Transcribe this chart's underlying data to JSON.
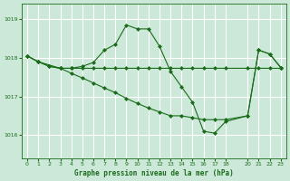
{
  "background_color": "#cce8d8",
  "grid_color": "#ffffff",
  "line_color": "#1a6b1a",
  "marker_color": "#1a6b1a",
  "title": "Graphe pression niveau de la mer (hPa)",
  "ylim": [
    1015.4,
    1019.4
  ],
  "yticks": [
    1016,
    1017,
    1018,
    1019
  ],
  "xlim": [
    -0.5,
    23.5
  ],
  "xticks": [
    0,
    1,
    2,
    3,
    4,
    5,
    6,
    7,
    8,
    9,
    10,
    11,
    12,
    13,
    14,
    15,
    16,
    17,
    18,
    20,
    21,
    22,
    23
  ],
  "series": [
    {
      "x": [
        0,
        1,
        2,
        3,
        4,
        5,
        6,
        7,
        8,
        9,
        10,
        11,
        12,
        13,
        14,
        15,
        16,
        17,
        18,
        20,
        21,
        22,
        23
      ],
      "y": [
        1018.05,
        1017.9,
        1017.78,
        1017.73,
        1017.73,
        1017.73,
        1017.73,
        1017.73,
        1017.73,
        1017.73,
        1017.73,
        1017.73,
        1017.73,
        1017.73,
        1017.73,
        1017.73,
        1017.73,
        1017.73,
        1017.73,
        1017.73,
        1017.73,
        1017.73,
        1017.73
      ]
    },
    {
      "x": [
        0,
        1,
        2,
        3,
        4,
        5,
        6,
        7,
        8,
        9,
        10,
        11,
        12,
        13,
        14,
        15,
        16,
        17,
        18,
        20,
        21,
        22,
        23
      ],
      "y": [
        1018.05,
        1017.9,
        1017.78,
        1017.73,
        1017.73,
        1017.78,
        1017.88,
        1018.2,
        1018.35,
        1018.85,
        1018.75,
        1018.75,
        1018.3,
        1017.65,
        1017.25,
        1016.85,
        1016.1,
        1016.05,
        1016.35,
        1016.5,
        1018.2,
        1018.1,
        1017.75
      ]
    },
    {
      "x": [
        0,
        1,
        3,
        4,
        5,
        6,
        7,
        8,
        9,
        10,
        11,
        12,
        13,
        14,
        15,
        16,
        17,
        18,
        20,
        21,
        22,
        23
      ],
      "y": [
        1018.05,
        1017.9,
        1017.73,
        1017.6,
        1017.48,
        1017.35,
        1017.22,
        1017.1,
        1016.95,
        1016.82,
        1016.7,
        1016.6,
        1016.5,
        1016.5,
        1016.45,
        1016.4,
        1016.4,
        1016.4,
        1016.5,
        1018.2,
        1018.1,
        1017.75
      ]
    }
  ]
}
